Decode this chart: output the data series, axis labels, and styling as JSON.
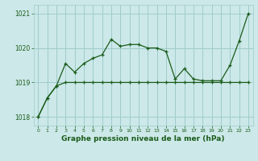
{
  "xlabel": "Graphe pression niveau de la mer (hPa)",
  "bg_color": "#cce8e8",
  "grid_color": "#a0cccc",
  "line_color": "#1a5c1a",
  "x_values": [
    0,
    1,
    2,
    3,
    4,
    5,
    6,
    7,
    8,
    9,
    10,
    11,
    12,
    13,
    14,
    15,
    16,
    17,
    18,
    19,
    20,
    21,
    22,
    23
  ],
  "y_line1": [
    1018.0,
    1018.55,
    1018.9,
    1019.55,
    1019.3,
    1019.55,
    1019.7,
    1019.8,
    1020.25,
    1020.05,
    1020.1,
    1020.1,
    1020.0,
    1020.0,
    1019.9,
    1019.1,
    1019.4,
    1019.1,
    1019.05,
    1019.05,
    1019.05,
    1019.5,
    1020.2,
    1021.0
  ],
  "y_line2": [
    1018.0,
    1018.55,
    1018.9,
    1019.0,
    1019.0,
    1019.0,
    1019.0,
    1019.0,
    1019.0,
    1019.0,
    1019.0,
    1019.0,
    1019.0,
    1019.0,
    1019.0,
    1019.0,
    1019.0,
    1019.0,
    1019.0,
    1019.0,
    1019.0,
    1019.0,
    1019.0,
    1019.0
  ],
  "ylim": [
    1017.75,
    1021.25
  ],
  "yticks": [
    1018,
    1019,
    1020,
    1021
  ],
  "xticks": [
    0,
    1,
    2,
    3,
    4,
    5,
    6,
    7,
    8,
    9,
    10,
    11,
    12,
    13,
    14,
    15,
    16,
    17,
    18,
    19,
    20,
    21,
    22,
    23
  ]
}
